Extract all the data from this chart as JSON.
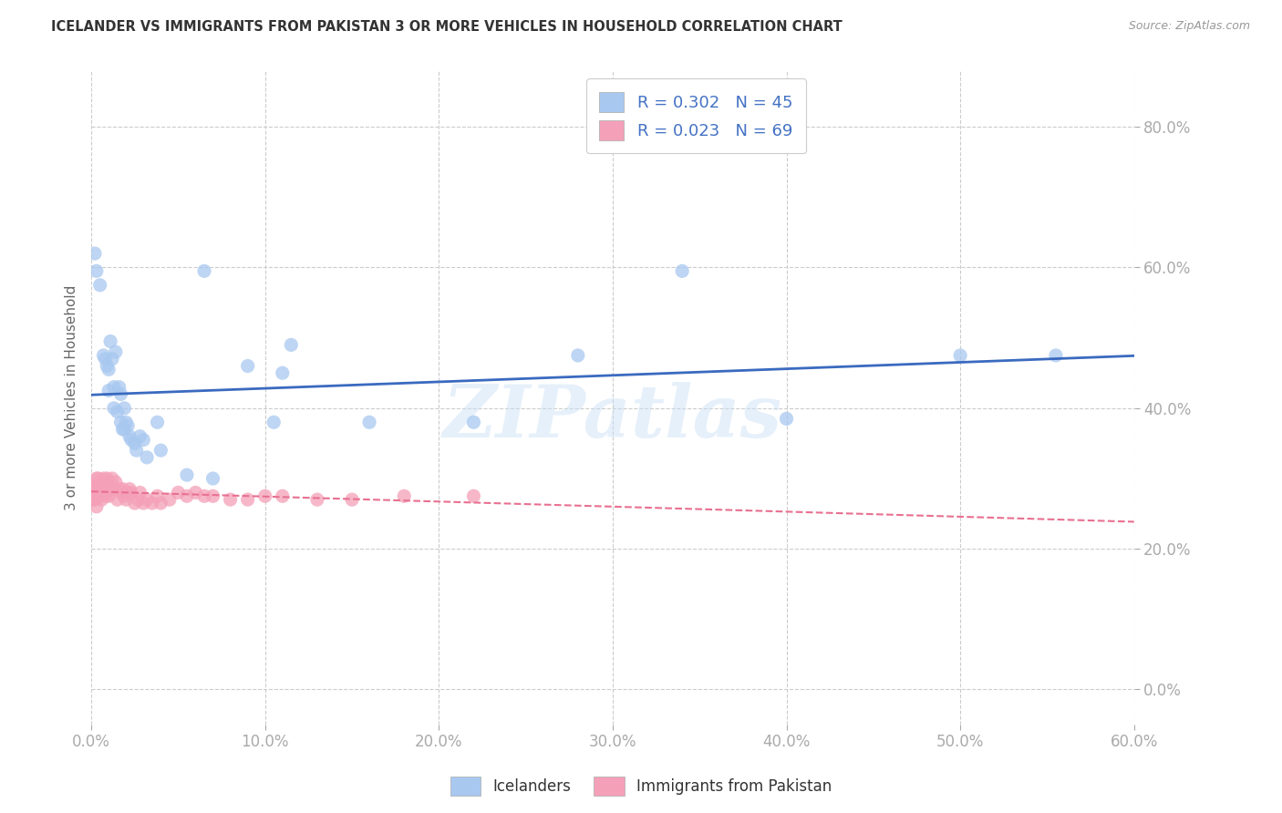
{
  "title": "ICELANDER VS IMMIGRANTS FROM PAKISTAN 3 OR MORE VEHICLES IN HOUSEHOLD CORRELATION CHART",
  "source": "Source: ZipAtlas.com",
  "ylabel": "3 or more Vehicles in Household",
  "xlim": [
    0.0,
    0.6
  ],
  "ylim": [
    -0.05,
    0.88
  ],
  "yticks": [
    0.0,
    0.2,
    0.4,
    0.6,
    0.8
  ],
  "xticks": [
    0.0,
    0.1,
    0.2,
    0.3,
    0.4,
    0.5,
    0.6
  ],
  "icelander_R": 0.302,
  "icelander_N": 45,
  "pakistan_R": 0.023,
  "pakistan_N": 69,
  "icelander_color": "#a8c8f0",
  "pakistan_color": "#f4a0b8",
  "icelander_line_color": "#3a6abf",
  "pakistan_line_color": "#e87090",
  "watermark": "ZIPatlas",
  "icelander_x": [
    0.002,
    0.003,
    0.005,
    0.007,
    0.008,
    0.009,
    0.01,
    0.01,
    0.011,
    0.012,
    0.013,
    0.013,
    0.014,
    0.015,
    0.016,
    0.017,
    0.017,
    0.018,
    0.019,
    0.019,
    0.02,
    0.021,
    0.022,
    0.023,
    0.025,
    0.026,
    0.028,
    0.03,
    0.032,
    0.038,
    0.04,
    0.055,
    0.065,
    0.07,
    0.09,
    0.105,
    0.11,
    0.115,
    0.16,
    0.22,
    0.28,
    0.34,
    0.4,
    0.5,
    0.555
  ],
  "icelander_y": [
    0.62,
    0.595,
    0.575,
    0.475,
    0.47,
    0.46,
    0.455,
    0.425,
    0.495,
    0.47,
    0.43,
    0.4,
    0.48,
    0.395,
    0.43,
    0.38,
    0.42,
    0.37,
    0.37,
    0.4,
    0.38,
    0.375,
    0.36,
    0.355,
    0.35,
    0.34,
    0.36,
    0.355,
    0.33,
    0.38,
    0.34,
    0.305,
    0.595,
    0.3,
    0.46,
    0.38,
    0.45,
    0.49,
    0.38,
    0.38,
    0.475,
    0.595,
    0.385,
    0.475,
    0.475
  ],
  "pakistan_x": [
    0.0,
    0.0,
    0.001,
    0.001,
    0.001,
    0.001,
    0.002,
    0.002,
    0.002,
    0.002,
    0.003,
    0.003,
    0.003,
    0.003,
    0.003,
    0.004,
    0.004,
    0.004,
    0.005,
    0.005,
    0.005,
    0.006,
    0.006,
    0.006,
    0.007,
    0.007,
    0.007,
    0.008,
    0.008,
    0.008,
    0.009,
    0.009,
    0.01,
    0.01,
    0.011,
    0.012,
    0.013,
    0.014,
    0.015,
    0.016,
    0.017,
    0.018,
    0.019,
    0.02,
    0.021,
    0.022,
    0.023,
    0.025,
    0.027,
    0.028,
    0.03,
    0.032,
    0.035,
    0.038,
    0.04,
    0.045,
    0.05,
    0.055,
    0.06,
    0.065,
    0.07,
    0.08,
    0.09,
    0.1,
    0.11,
    0.13,
    0.15,
    0.18,
    0.22
  ],
  "pakistan_y": [
    0.27,
    0.28,
    0.27,
    0.275,
    0.285,
    0.29,
    0.27,
    0.275,
    0.28,
    0.29,
    0.26,
    0.275,
    0.28,
    0.285,
    0.3,
    0.275,
    0.285,
    0.3,
    0.28,
    0.285,
    0.29,
    0.27,
    0.28,
    0.29,
    0.285,
    0.29,
    0.3,
    0.275,
    0.28,
    0.295,
    0.28,
    0.3,
    0.275,
    0.295,
    0.285,
    0.3,
    0.285,
    0.295,
    0.27,
    0.285,
    0.28,
    0.285,
    0.275,
    0.27,
    0.28,
    0.285,
    0.28,
    0.265,
    0.27,
    0.28,
    0.265,
    0.27,
    0.265,
    0.275,
    0.265,
    0.27,
    0.28,
    0.275,
    0.28,
    0.275,
    0.275,
    0.27,
    0.27,
    0.275,
    0.275,
    0.27,
    0.27,
    0.275,
    0.275
  ]
}
